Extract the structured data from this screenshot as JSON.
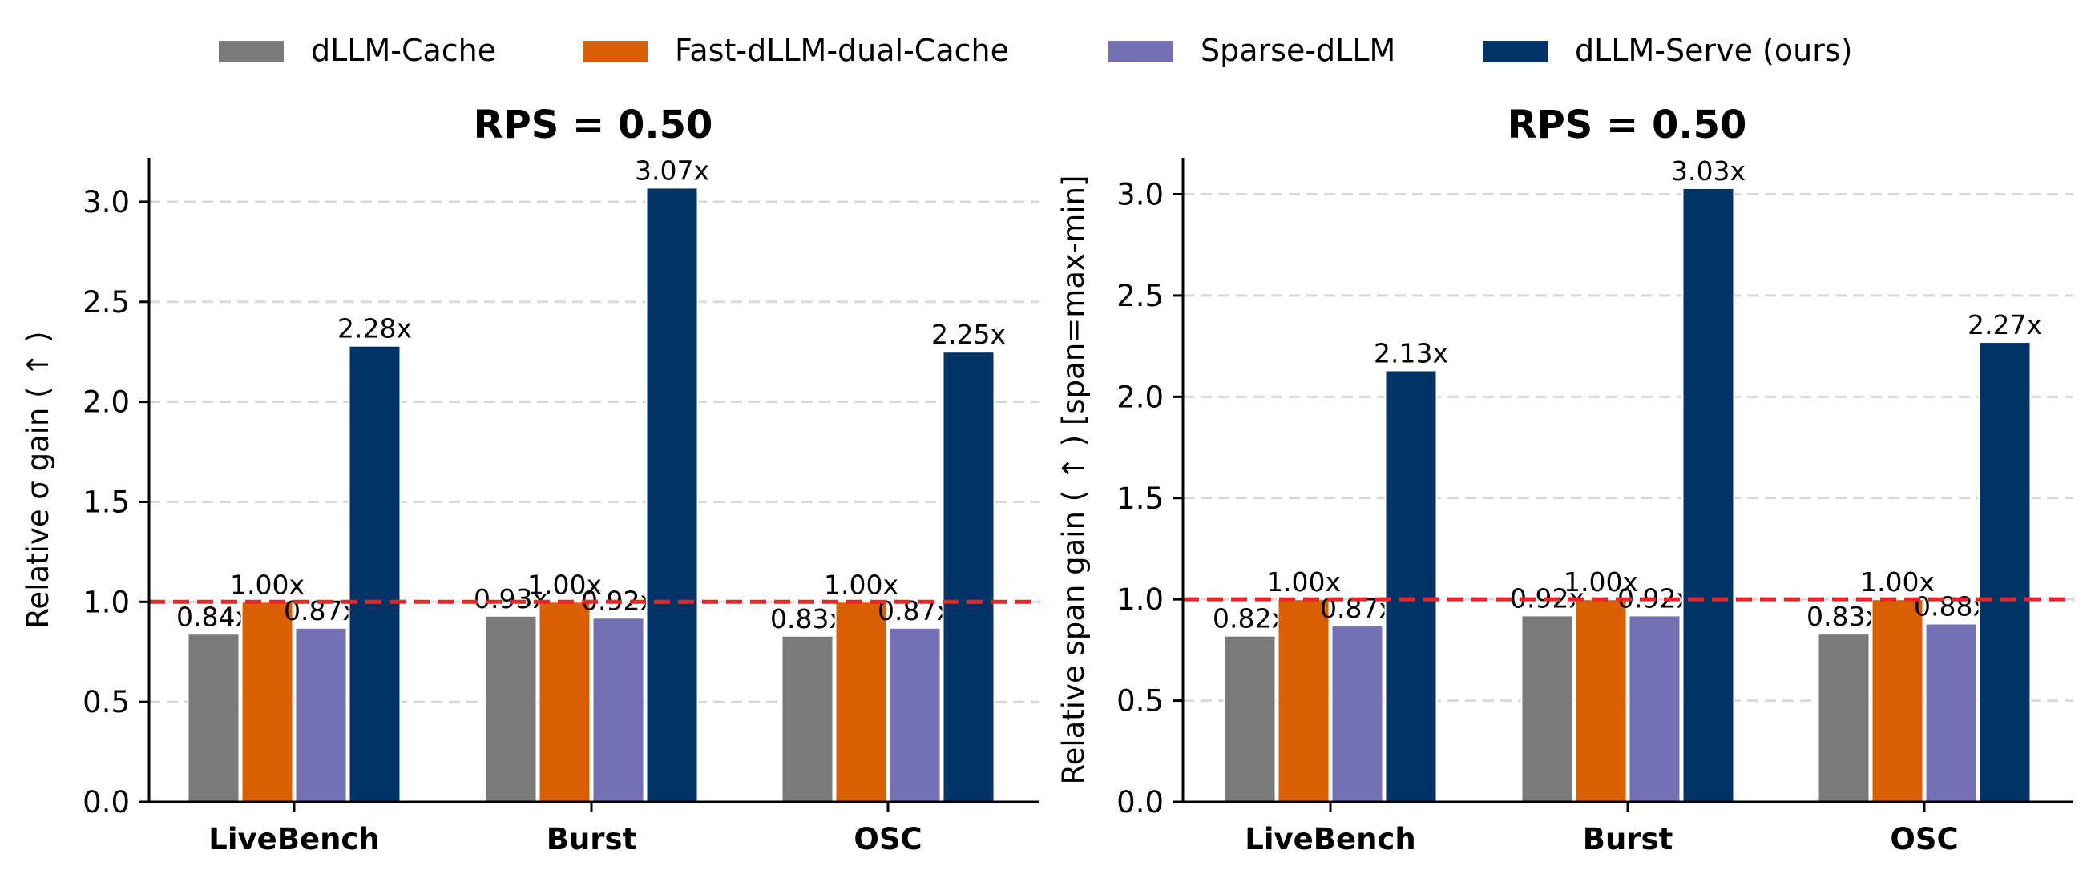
{
  "legend": [
    {
      "label": "dLLM-Cache",
      "color": "#7a7a7a"
    },
    {
      "label": "Fast-dLLM-dual-Cache",
      "color": "#d95f02"
    },
    {
      "label": "Sparse-dLLM",
      "color": "#7570b3"
    },
    {
      "label": "dLLM-Serve (ours)",
      "color": "#003366"
    }
  ],
  "chart_data": [
    {
      "type": "bar",
      "title": "RPS = 0.50",
      "xlabel": "",
      "ylabel": "Relative σ gain ( ↑ )",
      "ylim": [
        0,
        3.22
      ],
      "yticks": [
        "0.0",
        "0.5",
        "1.0",
        "1.5",
        "2.0",
        "2.5",
        "3.0"
      ],
      "categories": [
        "LiveBench",
        "Burst",
        "OSC"
      ],
      "reference_line": 1.0,
      "grid": true,
      "series": [
        {
          "name": "dLLM-Cache",
          "values": [
            0.84,
            0.93,
            0.83
          ],
          "labels": [
            "0.84x",
            "0.93x",
            "0.83x"
          ]
        },
        {
          "name": "Fast-dLLM-dual-Cache",
          "values": [
            1.0,
            1.0,
            1.0
          ],
          "labels": [
            "1.00x",
            "1.00x",
            "1.00x"
          ]
        },
        {
          "name": "Sparse-dLLM",
          "values": [
            0.87,
            0.92,
            0.87
          ],
          "labels": [
            "0.87x",
            "0.92x",
            "0.87x"
          ]
        },
        {
          "name": "dLLM-Serve (ours)",
          "values": [
            2.28,
            3.07,
            2.25
          ],
          "labels": [
            "2.28x",
            "3.07x",
            "2.25x"
          ]
        }
      ]
    },
    {
      "type": "bar",
      "title": "RPS = 0.50",
      "xlabel": "",
      "ylabel": "Relative span gain ( ↑ )  [span=max-min]",
      "ylim": [
        0,
        3.18
      ],
      "yticks": [
        "0.0",
        "0.5",
        "1.0",
        "1.5",
        "2.0",
        "2.5",
        "3.0"
      ],
      "categories": [
        "LiveBench",
        "Burst",
        "OSC"
      ],
      "reference_line": 1.0,
      "grid": true,
      "series": [
        {
          "name": "dLLM-Cache",
          "values": [
            0.82,
            0.92,
            0.83
          ],
          "labels": [
            "0.82x",
            "0.92x",
            "0.83x"
          ]
        },
        {
          "name": "Fast-dLLM-dual-Cache",
          "values": [
            1.0,
            1.0,
            1.0
          ],
          "labels": [
            "1.00x",
            "1.00x",
            "1.00x"
          ]
        },
        {
          "name": "Sparse-dLLM",
          "values": [
            0.87,
            0.92,
            0.88
          ],
          "labels": [
            "0.87x",
            "0.92x",
            "0.88x"
          ]
        },
        {
          "name": "dLLM-Serve (ours)",
          "values": [
            2.13,
            3.03,
            2.27
          ],
          "labels": [
            "2.13x",
            "3.03x",
            "2.27x"
          ]
        }
      ]
    }
  ]
}
